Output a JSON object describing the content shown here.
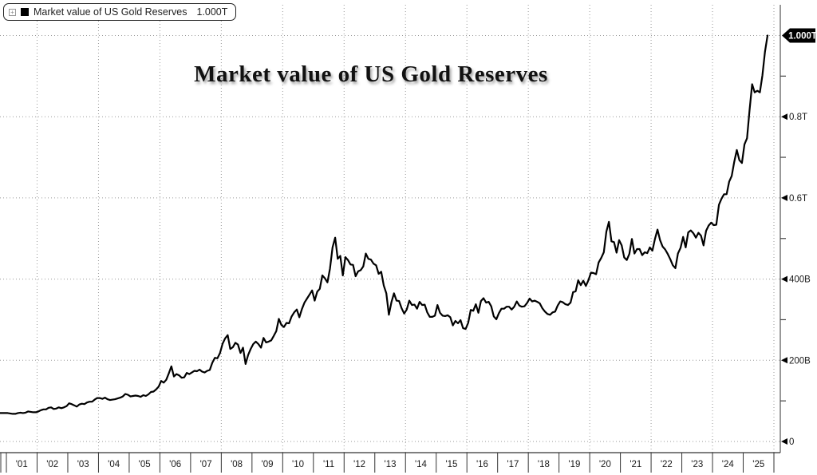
{
  "title": "Market value of US Gold Reserves",
  "legend": {
    "label": "Market value of US Gold Reserves",
    "value": "1.000T",
    "swatch_color": "#000000",
    "expand_icon_glyph": "+"
  },
  "colors": {
    "line": "#000000",
    "grid": "#999999",
    "axis_bottom": "#333333",
    "axis_right": "#777777",
    "tick_text": "#1a1a1a",
    "badge_bg": "#000000",
    "badge_text": "#ffffff",
    "background": "#ffffff"
  },
  "chart_data": {
    "type": "line",
    "title": "Market value of US Gold Reserves",
    "xlabel": "",
    "ylabel": "",
    "unit": "USD billions (B) / trillions (T)",
    "grid": "dotted, horizontal at each major y tick, vertical every 2 years",
    "legend_position": "top-left",
    "xlim": [
      2000.79,
      2026.2
    ],
    "ylim": [
      0,
      1040
    ],
    "x_tick_years": [
      "'01",
      "'02",
      "'03",
      "'04",
      "'05",
      "'06",
      "'07",
      "'08",
      "'09",
      "'10",
      "'11",
      "'12",
      "'13",
      "'14",
      "'15",
      "'16",
      "'17",
      "'18",
      "'19",
      "'20",
      "'21",
      "'22",
      "'23",
      "'24",
      "'25"
    ],
    "x_tick_start_year": 2001,
    "y_major_ticks": [
      {
        "v": 0,
        "label": "0"
      },
      {
        "v": 200,
        "label": "200B"
      },
      {
        "v": 400,
        "label": "400B"
      },
      {
        "v": 600,
        "label": "0.6T"
      },
      {
        "v": 800,
        "label": "0.8T"
      },
      {
        "v": 1000,
        "label": "1.000T",
        "badge": true
      }
    ],
    "y_minor_ticks": [
      100,
      300,
      500,
      700,
      900
    ],
    "last_value_badge": {
      "v": 1000,
      "label": "1.000T"
    },
    "series": [
      {
        "name": "Market value of US Gold Reserves",
        "start_year": 2001,
        "points_per_year": 12,
        "values_billions": [
          70,
          69,
          68,
          68,
          70,
          71,
          70,
          71,
          74,
          73,
          72,
          72,
          74,
          77,
          79,
          79,
          83,
          84,
          80,
          81,
          84,
          82,
          84,
          87,
          94,
          92,
          89,
          86,
          91,
          93,
          92,
          96,
          98,
          98,
          103,
          107,
          107,
          105,
          108,
          104,
          102,
          103,
          104,
          106,
          108,
          111,
          117,
          115,
          111,
          112,
          113,
          112,
          110,
          114,
          112,
          116,
          122,
          123,
          128,
          135,
          149,
          145,
          152,
          168,
          185,
          160,
          166,
          163,
          157,
          158,
          169,
          166,
          170,
          174,
          173,
          177,
          172,
          170,
          174,
          176,
          194,
          206,
          205,
          218,
          241,
          254,
          262,
          228,
          232,
          243,
          239,
          218,
          231,
          191,
          213,
          228,
          240,
          246,
          240,
          231,
          255,
          244,
          246,
          249,
          260,
          272,
          302,
          287,
          282,
          292,
          291,
          308,
          318,
          325,
          306,
          326,
          342,
          352,
          362,
          372,
          347,
          369,
          376,
          409,
          402,
          392,
          426,
          478,
          502,
          450,
          457,
          409,
          454,
          447,
          436,
          435,
          407,
          419,
          422,
          431,
          463,
          450,
          448,
          438,
          434,
          413,
          418,
          384,
          365,
          312,
          343,
          365,
          347,
          346,
          328,
          315,
          325,
          347,
          336,
          337,
          327,
          344,
          336,
          337,
          318,
          307,
          307,
          310,
          336,
          317,
          310,
          309,
          311,
          306,
          286,
          297,
          291,
          299,
          279,
          277,
          292,
          324,
          322,
          338,
          317,
          346,
          353,
          342,
          344,
          333,
          308,
          301,
          316,
          327,
          327,
          332,
          332,
          325,
          332,
          345,
          335,
          332,
          333,
          341,
          352,
          345,
          347,
          344,
          340,
          328,
          320,
          314,
          312,
          318,
          320,
          335,
          345,
          343,
          338,
          336,
          342,
          368,
          370,
          397,
          385,
          396,
          383,
          397,
          416,
          415,
          412,
          441,
          452,
          466,
          517,
          541,
          493,
          491,
          465,
          496,
          483,
          453,
          447,
          462,
          499,
          463,
          474,
          474,
          459,
          466,
          464,
          478,
          470,
          499,
          522,
          496,
          480,
          473,
          462,
          449,
          434,
          427,
          463,
          477,
          504,
          478,
          515,
          520,
          513,
          502,
          514,
          507,
          483,
          519,
          532,
          539,
          533,
          534,
          583,
          598,
          609,
          609,
          640,
          654,
          689,
          718,
          693,
          686,
          732,
          747,
          817,
          880,
          860,
          864,
          860,
          902,
          960,
          1000
        ]
      }
    ]
  }
}
